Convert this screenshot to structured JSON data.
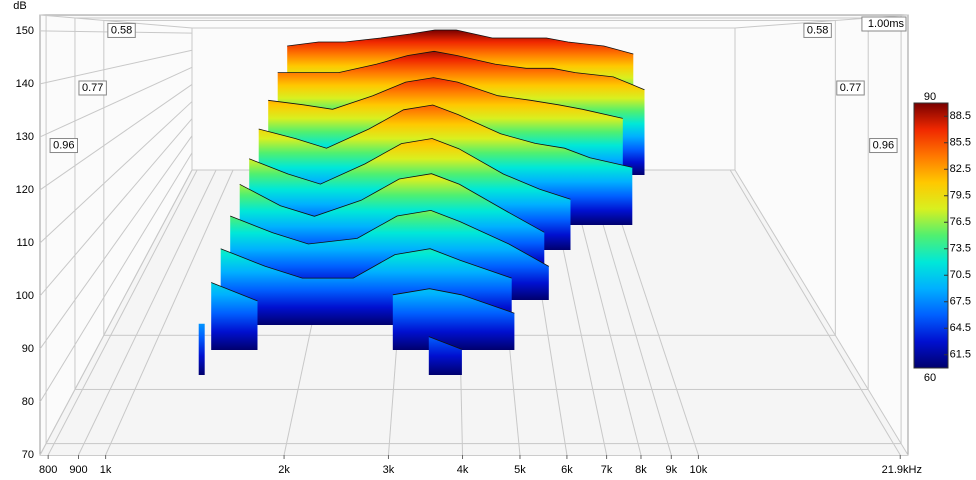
{
  "chart_data": {
    "type": "waterfall",
    "y_label": "dB",
    "ylim": [
      70,
      153
    ],
    "yticks": [
      70,
      80,
      90,
      100,
      110,
      120,
      130,
      140,
      150
    ],
    "xscale": "log",
    "xlim": [
      775,
      22570
    ],
    "xticks": [
      800,
      900,
      {
        "value": 1000,
        "label": "1k"
      },
      {
        "value": 2000,
        "label": "2k"
      },
      {
        "value": 3000,
        "label": "3k"
      },
      {
        "value": 4000,
        "label": "4k"
      },
      {
        "value": 5000,
        "label": "5k"
      },
      {
        "value": 6000,
        "label": "6k"
      },
      {
        "value": 7000,
        "label": "7k"
      },
      {
        "value": 8000,
        "label": "8k"
      },
      {
        "value": 9000,
        "label": "9k"
      },
      {
        "value": 10000,
        "label": "10k"
      },
      {
        "value": 21900,
        "label": "21.9kHz"
      }
    ],
    "zlim": [
      0,
      1
    ],
    "zticks": [
      0.58,
      0.77,
      0.96
    ],
    "z_end": {
      "value": 1.0,
      "label": "1.00ms"
    },
    "x": [
      1400,
      1700,
      2000,
      2500,
      3000,
      3500,
      4000,
      5000,
      6000,
      7000,
      8000,
      10000,
      12000
    ],
    "series": [
      {
        "t": 0,
        "values": [
          86,
          87,
          87,
          88,
          89,
          90,
          90,
          88,
          88,
          88,
          87,
          86,
          84
        ]
      },
      {
        "t": 0.1,
        "values": [
          84,
          84,
          84,
          86,
          88,
          89,
          88,
          86,
          85,
          85,
          84,
          83,
          80
        ]
      },
      {
        "t": 0.2,
        "values": [
          82,
          81,
          80,
          83,
          86,
          87,
          86,
          83,
          82,
          81,
          80,
          78,
          null
        ]
      },
      {
        "t": 0.3,
        "values": [
          80,
          78,
          76,
          80,
          84,
          85,
          83,
          79,
          77,
          76,
          74,
          72,
          null
        ]
      },
      {
        "t": 0.4,
        "values": [
          78,
          75,
          73,
          77,
          81,
          82,
          80,
          75,
          72,
          70,
          null,
          null,
          null
        ]
      },
      {
        "t": 0.5,
        "values": [
          77,
          73,
          71,
          74,
          78,
          79,
          77,
          72,
          68,
          null,
          null,
          null,
          null
        ]
      },
      {
        "t": 0.6,
        "values": [
          75,
          72,
          70,
          71,
          75,
          76,
          74,
          70,
          66,
          null,
          null,
          null,
          null
        ]
      },
      {
        "t": 0.7,
        "values": [
          73,
          70,
          68,
          68,
          72,
          73,
          71,
          68,
          null,
          null,
          null,
          null,
          null
        ]
      },
      {
        "t": 0.8,
        "values": [
          71,
          68,
          null,
          null,
          69,
          70,
          69,
          66,
          null,
          null,
          null,
          null,
          null
        ]
      },
      {
        "t": 0.9,
        "values": [
          68,
          null,
          null,
          null,
          null,
          66,
          64,
          null,
          null,
          null,
          null,
          null,
          null
        ]
      }
    ],
    "colorbar": {
      "lim": [
        60,
        90
      ],
      "ticks": [
        61.5,
        64.5,
        67.5,
        70.5,
        73.5,
        76.5,
        79.5,
        82.5,
        85.5,
        88.5
      ]
    },
    "colormap": [
      {
        "value": 60,
        "color": "#00006e"
      },
      {
        "value": 63,
        "color": "#0010d0"
      },
      {
        "value": 66,
        "color": "#0060ff"
      },
      {
        "value": 69,
        "color": "#00b0ff"
      },
      {
        "value": 72,
        "color": "#00e8d8"
      },
      {
        "value": 75,
        "color": "#50f070"
      },
      {
        "value": 78,
        "color": "#d8f020"
      },
      {
        "value": 81,
        "color": "#ffc800"
      },
      {
        "value": 84,
        "color": "#ff7800"
      },
      {
        "value": 87,
        "color": "#f02800"
      },
      {
        "value": 90,
        "color": "#780000"
      }
    ]
  }
}
